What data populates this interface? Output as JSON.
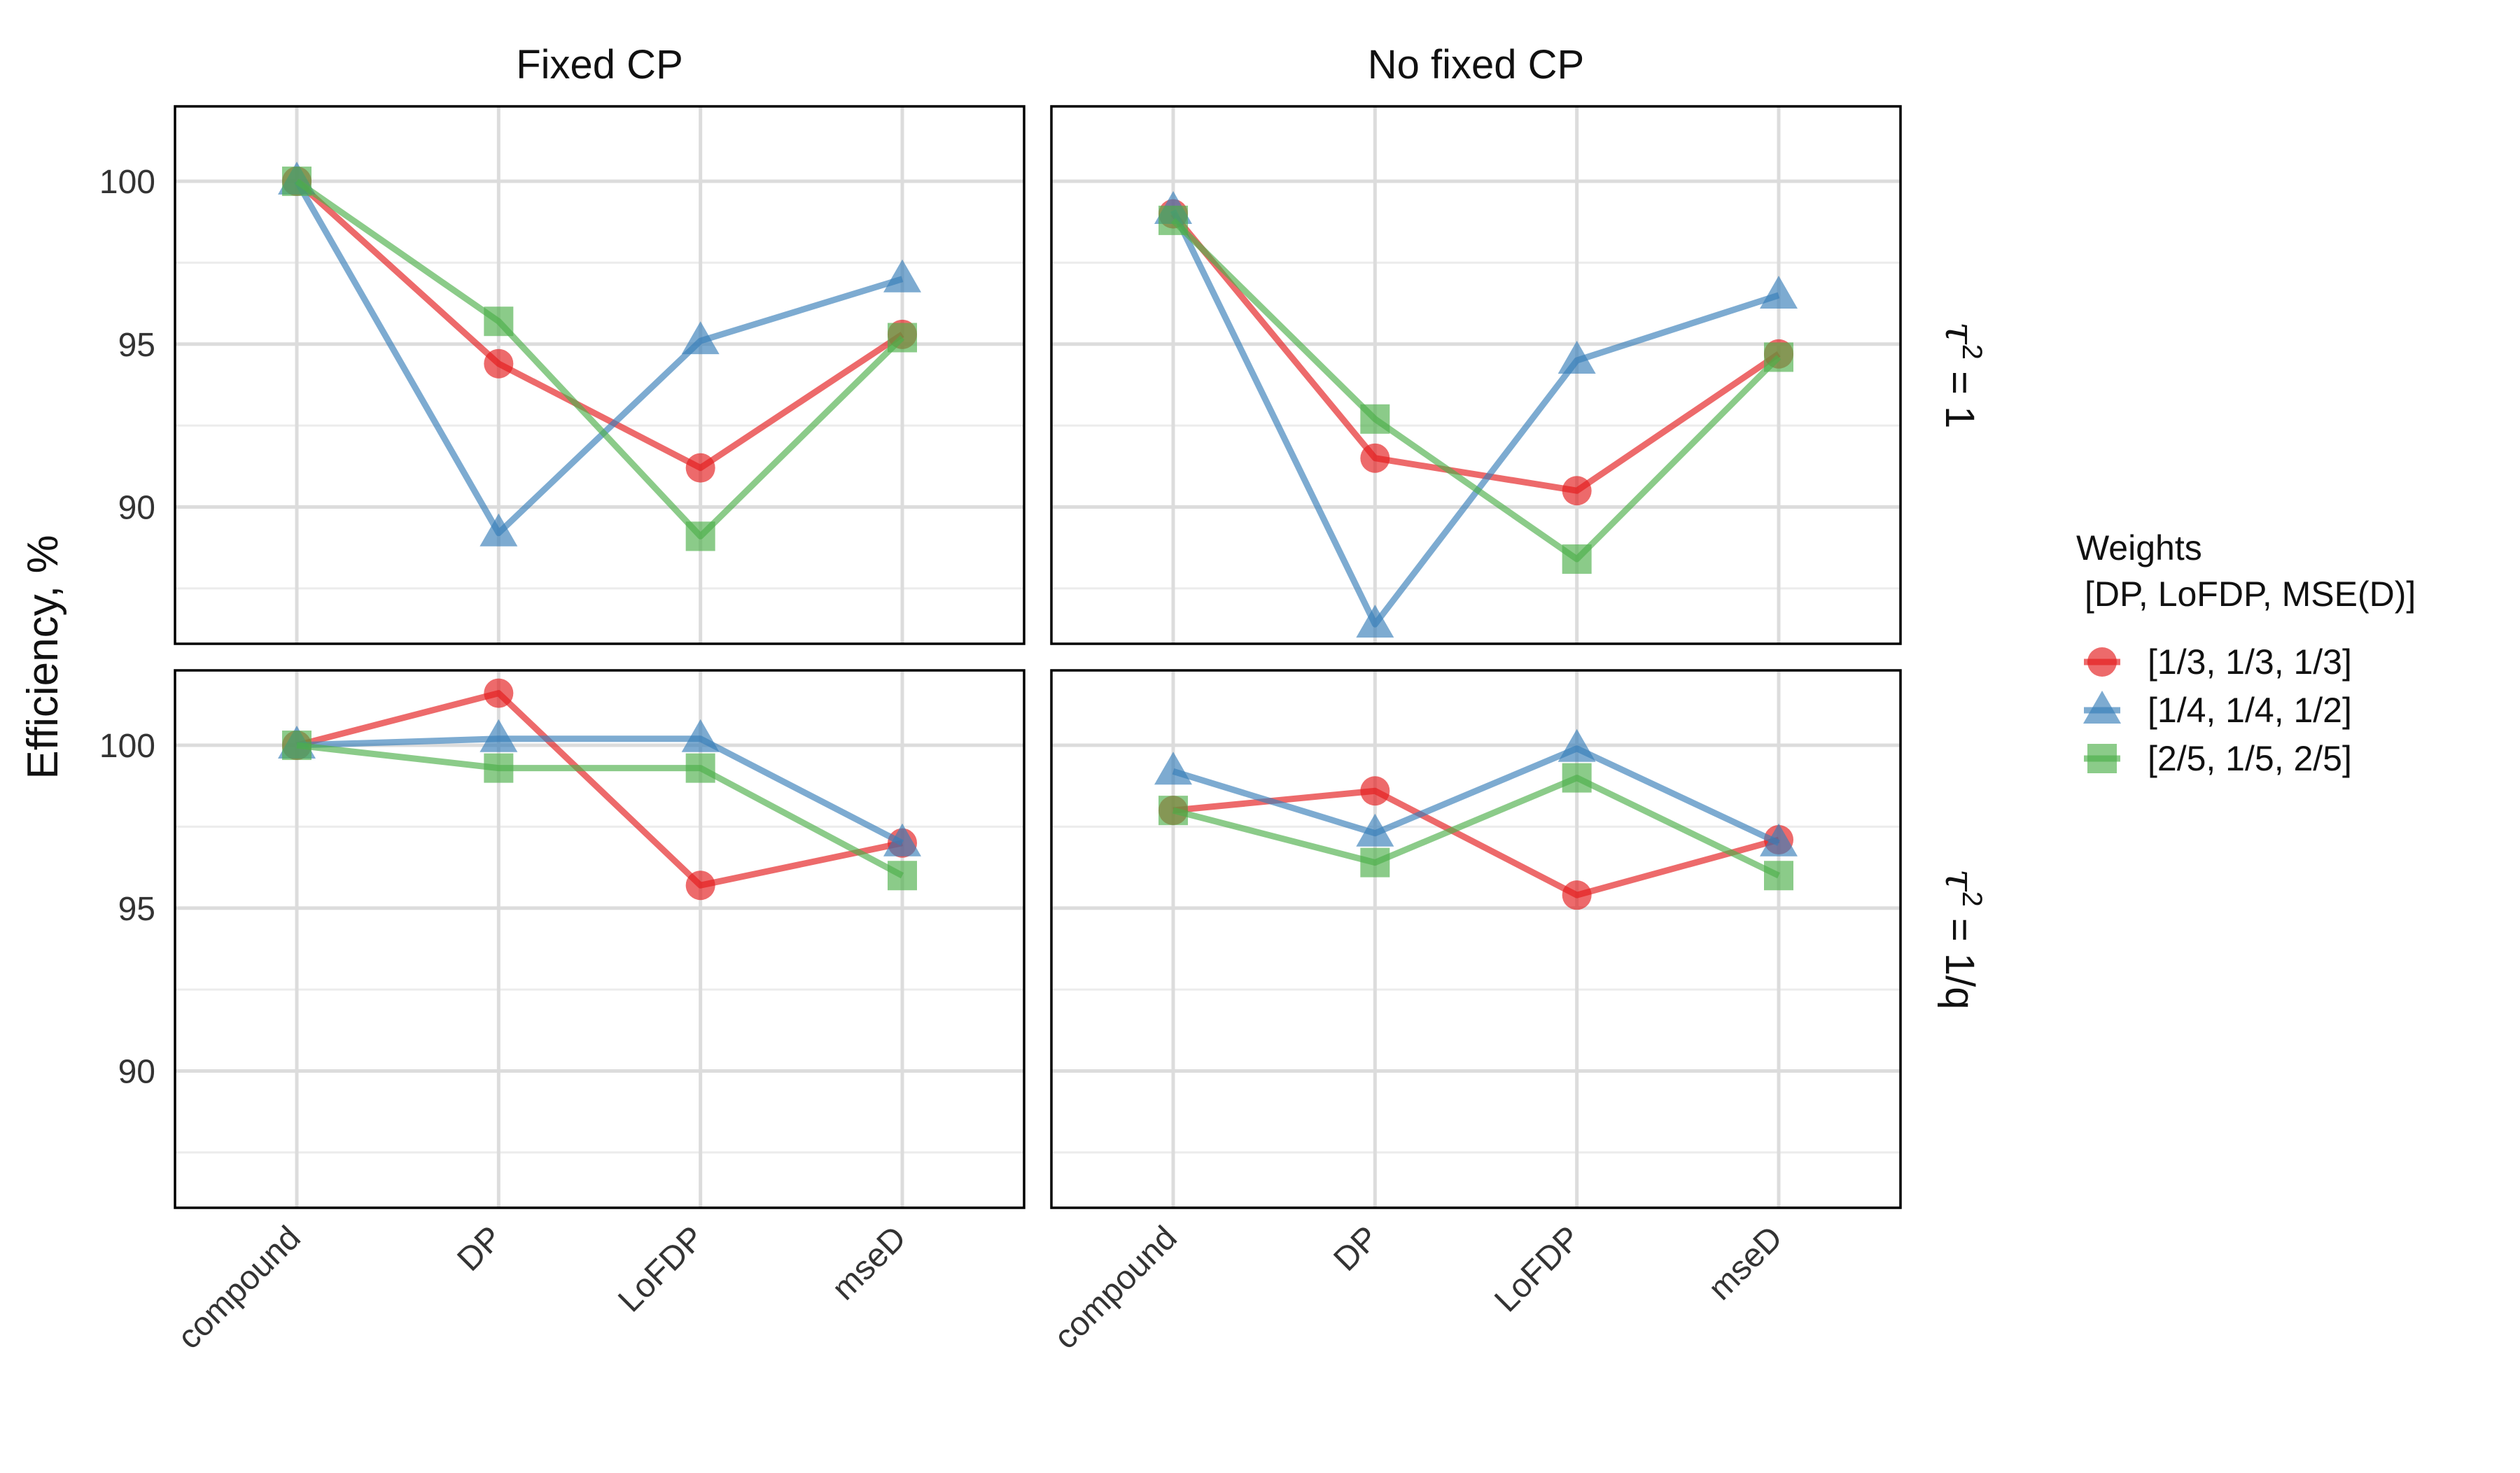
{
  "chart_data": {
    "type": "line",
    "ylabel": "Efficiency, %",
    "categories": [
      "compound",
      "DP",
      "LoFDP",
      "mseD"
    ],
    "yticks": [
      90,
      95,
      100
    ],
    "ylim": [
      85.8,
      102.3
    ],
    "grid": true,
    "legend": {
      "position": "right",
      "title_line1": "Weights",
      "title_line2": "[DP, LoFDP, MSE(D)]"
    },
    "columns": [
      "Fixed CP",
      "No fixed CP"
    ],
    "rows": [
      {
        "base": "τ",
        "sup": "2",
        "rest": " = 1"
      },
      {
        "base": "τ",
        "sup": "2",
        "rest": " = 1/q"
      }
    ],
    "series": [
      {
        "name": "[1/3, 1/3, 1/3]",
        "color": "#E41A1C",
        "marker": "circle"
      },
      {
        "name": "[1/4, 1/4, 1/2]",
        "color": "#377EB8",
        "marker": "triangle"
      },
      {
        "name": "[2/5, 1/5, 2/5]",
        "color": "#4DAF4A",
        "marker": "square"
      }
    ],
    "panels": [
      {
        "column": "Fixed CP",
        "row": "τ2 = 1",
        "values": [
          [
            100.0,
            94.4,
            91.2,
            95.3
          ],
          [
            100.0,
            89.2,
            95.1,
            97.0
          ],
          [
            100.0,
            95.7,
            89.1,
            95.2
          ]
        ]
      },
      {
        "column": "No fixed CP",
        "row": "τ2 = 1",
        "values": [
          [
            99.0,
            91.5,
            90.5,
            94.7
          ],
          [
            99.1,
            86.4,
            94.5,
            96.5
          ],
          [
            98.8,
            92.7,
            88.4,
            94.6
          ]
        ]
      },
      {
        "column": "Fixed CP",
        "row": "τ2 = 1/q",
        "values": [
          [
            100.0,
            101.6,
            95.7,
            97.0
          ],
          [
            100.0,
            100.2,
            100.2,
            97.0
          ],
          [
            100.0,
            99.3,
            99.3,
            96.0
          ]
        ]
      },
      {
        "column": "No fixed CP",
        "row": "τ2 = 1/q",
        "values": [
          [
            98.0,
            98.6,
            95.4,
            97.1
          ],
          [
            99.2,
            97.3,
            99.9,
            97.0
          ],
          [
            98.0,
            96.4,
            99.0,
            96.0
          ]
        ]
      }
    ]
  }
}
